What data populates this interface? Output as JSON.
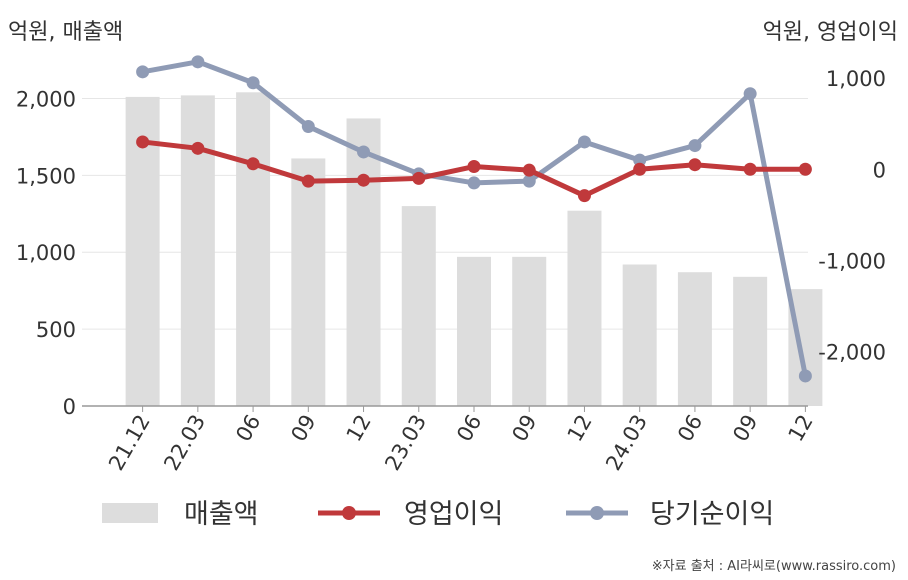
{
  "units": {
    "left": "억원, 매출액",
    "right": "억원, 영업이익"
  },
  "source": "※자료 출처 : AI라씨로(www.rassiro.com)",
  "legend": [
    {
      "label": "매출액",
      "kind": "bar"
    },
    {
      "label": "영업이익",
      "kind": "line"
    },
    {
      "label": "당기순이익",
      "kind": "line"
    }
  ],
  "colors": {
    "revenue": "#dddddd",
    "operating": "#c0393b",
    "net": "#8f9bb5",
    "grid": "#e6e6e6",
    "axis": "#999999"
  },
  "chart_data": {
    "type": "bar",
    "categories": [
      "21.12",
      "22.03",
      "06",
      "09",
      "12",
      "23.03",
      "06",
      "09",
      "12",
      "24.03",
      "06",
      "09",
      "12"
    ],
    "left_axis": {
      "ylim": [
        0,
        2250
      ],
      "ticks": [
        0,
        500,
        1000,
        1500,
        2000
      ],
      "tick_labels": [
        "0",
        "500",
        "1,000",
        "1,500",
        "2,000"
      ]
    },
    "right_axis": {
      "ylim": [
        -2600,
        1200
      ],
      "ticks": [
        -2000,
        -1000,
        0,
        1000
      ],
      "tick_labels": [
        "-2,000",
        "-1,000",
        "0",
        "1,000"
      ]
    },
    "series": [
      {
        "name": "매출액",
        "type": "bar",
        "axis": "left",
        "values": [
          2010,
          2020,
          2040,
          1610,
          1870,
          1300,
          970,
          970,
          1270,
          920,
          870,
          840,
          760
        ]
      },
      {
        "name": "영업이익",
        "type": "line",
        "axis": "right",
        "values": [
          300,
          230,
          60,
          -130,
          -120,
          -100,
          30,
          -10,
          -290,
          0,
          50,
          0,
          0
        ]
      },
      {
        "name": "당기순이익",
        "type": "line",
        "axis": "right",
        "values": [
          1070,
          1180,
          950,
          470,
          190,
          -50,
          -150,
          -130,
          300,
          100,
          260,
          830,
          -2270
        ]
      }
    ],
    "grid": true,
    "legend_position": "bottom"
  }
}
